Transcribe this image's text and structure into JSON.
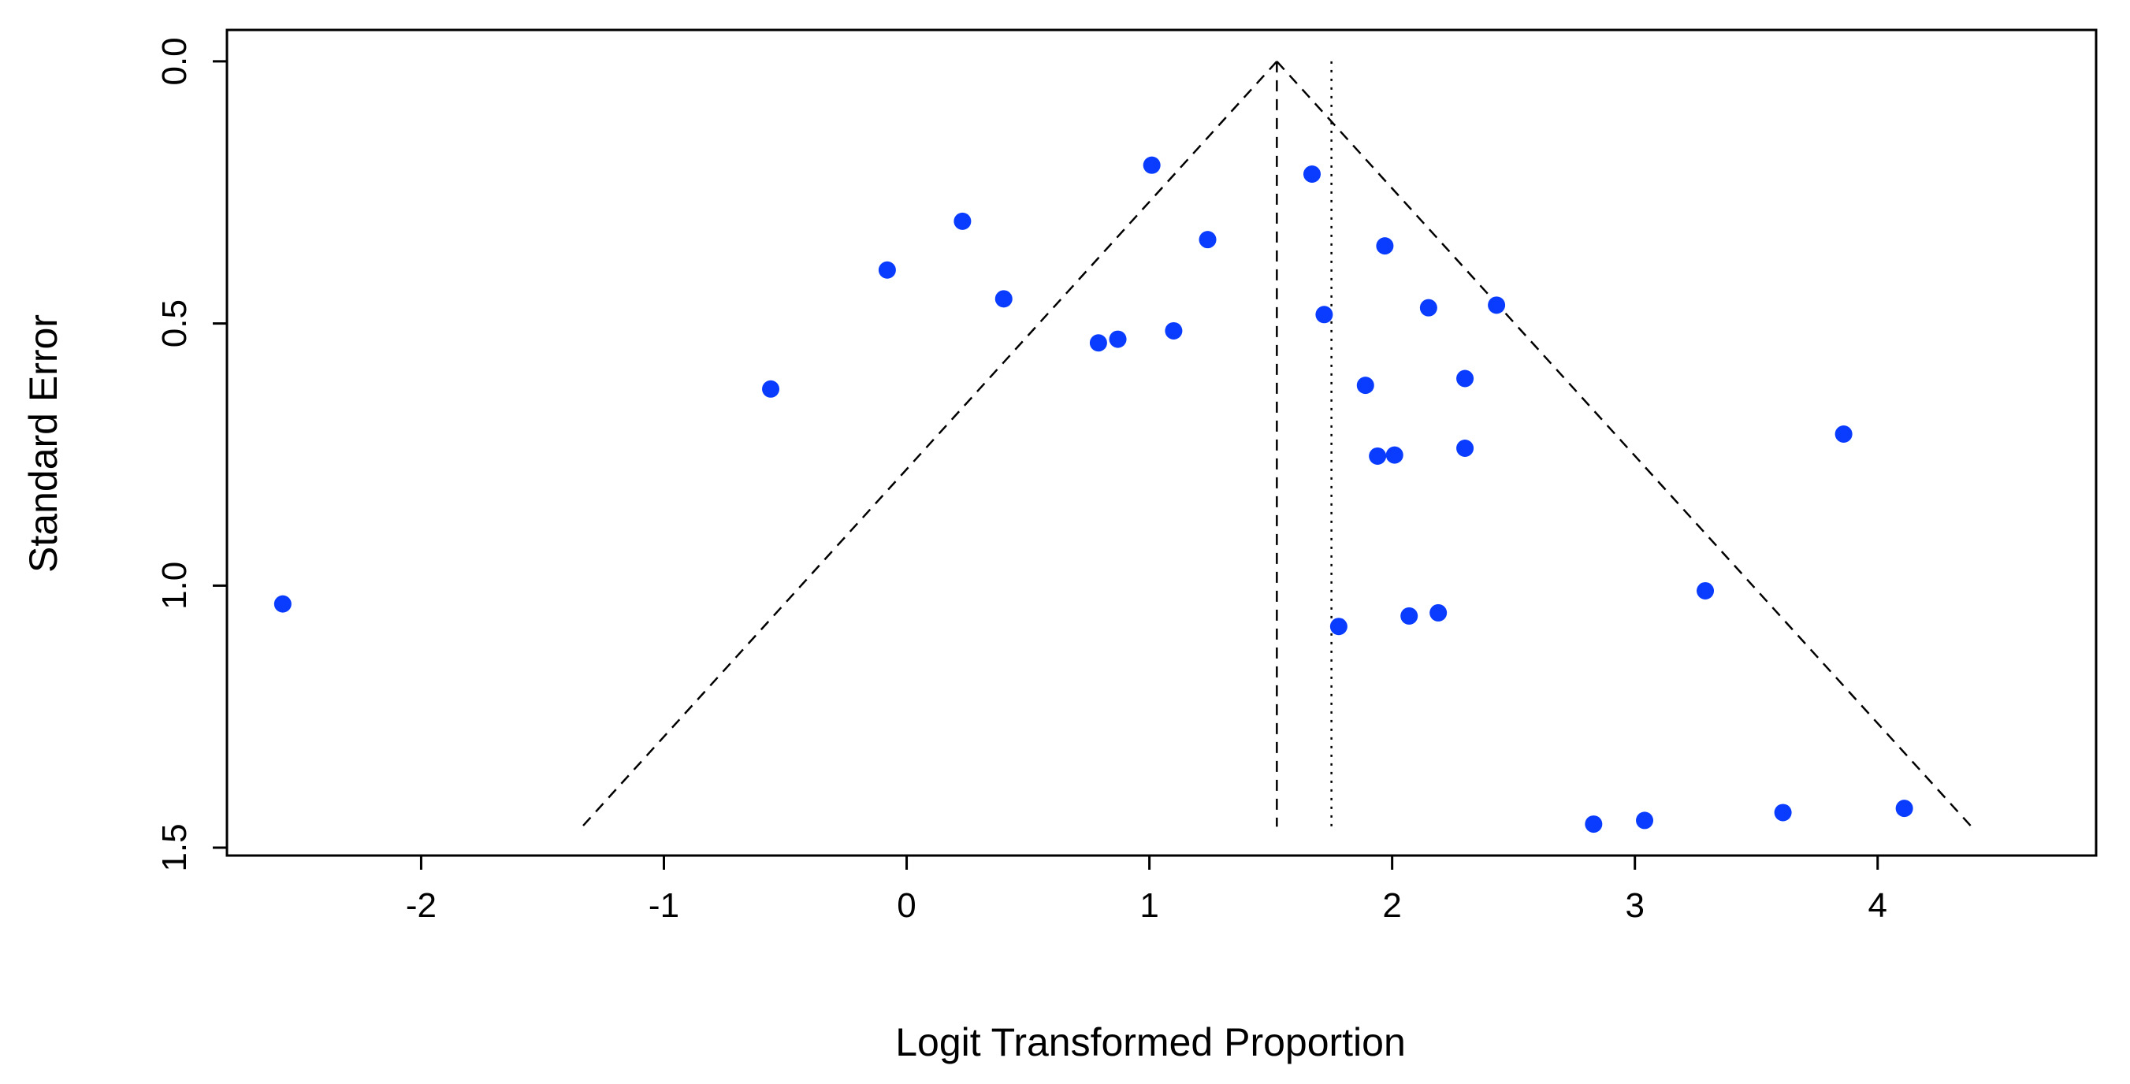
{
  "chart_data": {
    "type": "scatter",
    "title": "",
    "xlabel": "Logit Transformed Proportion",
    "ylabel": "Standard Error",
    "xlim": [
      -2.8,
      4.9
    ],
    "ylim": [
      1.515,
      -0.06
    ],
    "y_axis_inverted": true,
    "grid": false,
    "legend": "none",
    "x_ticks": [
      -2,
      -1,
      0,
      1,
      2,
      3,
      4
    ],
    "x_tick_labels": [
      "-2",
      "-1",
      "0",
      "1",
      "2",
      "3",
      "4"
    ],
    "y_ticks": [
      0.0,
      0.5,
      1.0,
      1.5
    ],
    "y_tick_labels": [
      "0.0",
      "0.5",
      "1.0",
      "1.5"
    ],
    "point_color": "#0a3cff",
    "points": [
      {
        "x": -2.57,
        "y": 1.035
      },
      {
        "x": -0.56,
        "y": 0.625
      },
      {
        "x": -0.08,
        "y": 0.398
      },
      {
        "x": 0.23,
        "y": 0.305
      },
      {
        "x": 0.4,
        "y": 0.453
      },
      {
        "x": 0.79,
        "y": 0.537
      },
      {
        "x": 0.87,
        "y": 0.53
      },
      {
        "x": 1.01,
        "y": 0.198
      },
      {
        "x": 1.1,
        "y": 0.514
      },
      {
        "x": 1.24,
        "y": 0.34
      },
      {
        "x": 1.67,
        "y": 0.215
      },
      {
        "x": 1.72,
        "y": 0.483
      },
      {
        "x": 1.78,
        "y": 1.078
      },
      {
        "x": 1.89,
        "y": 0.618
      },
      {
        "x": 1.94,
        "y": 0.753
      },
      {
        "x": 1.97,
        "y": 0.352
      },
      {
        "x": 2.01,
        "y": 0.751
      },
      {
        "x": 2.07,
        "y": 1.058
      },
      {
        "x": 2.15,
        "y": 0.47
      },
      {
        "x": 2.19,
        "y": 1.052
      },
      {
        "x": 2.3,
        "y": 0.605
      },
      {
        "x": 2.3,
        "y": 0.738
      },
      {
        "x": 2.43,
        "y": 0.465
      },
      {
        "x": 2.83,
        "y": 1.455
      },
      {
        "x": 3.04,
        "y": 1.448
      },
      {
        "x": 3.29,
        "y": 1.01
      },
      {
        "x": 3.61,
        "y": 1.433
      },
      {
        "x": 3.86,
        "y": 0.711
      },
      {
        "x": 4.11,
        "y": 1.425
      }
    ],
    "pooled_estimate": 1.525,
    "reference_line_x": 1.75,
    "funnel_max_se": 1.46
  }
}
